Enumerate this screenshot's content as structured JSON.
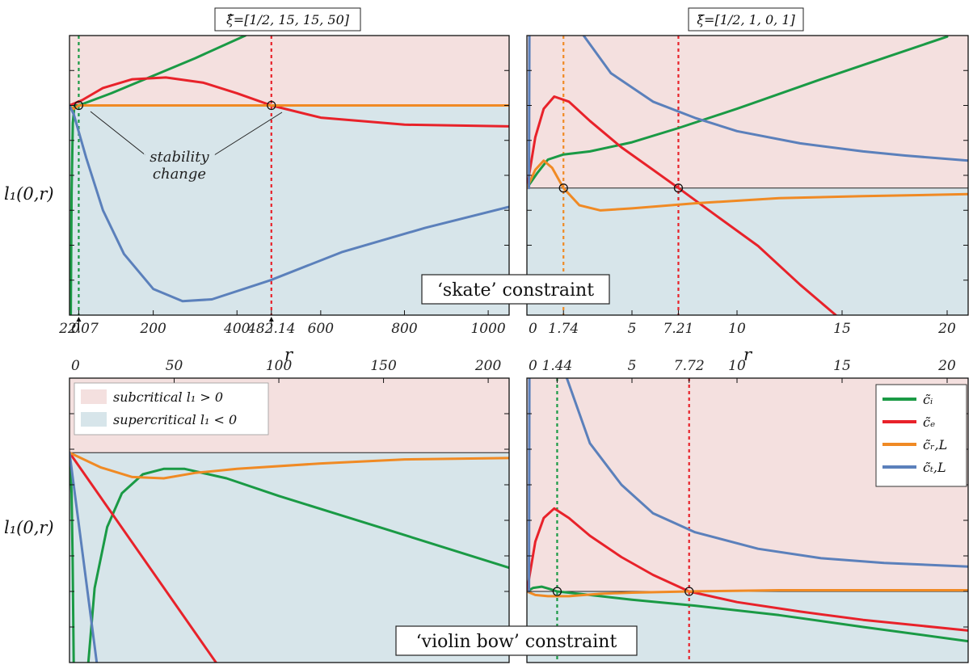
{
  "colors": {
    "green": "#1a9a45",
    "red": "#e8222a",
    "orange": "#f08a24",
    "blue": "#5b80bb",
    "subcritical_bg": "#f4e0df",
    "supercritical_bg": "#d7e5ea"
  },
  "titles": {
    "left": "ξ̂=[1/2, 15, 15, 50]",
    "right": "ξ̃=[1/2, 1, 0, 1]"
  },
  "ylabel": "l₁(0,r)",
  "xlabel": "r",
  "banners": {
    "skate": "‘skate’ constraint",
    "violin": "‘violin bow’ constraint"
  },
  "annotation": {
    "line1": "stability",
    "line2": "change"
  },
  "region_legend": {
    "sub": "subcritical  l₁ > 0",
    "super": "supercritical  l₁ < 0"
  },
  "series_legend": [
    {
      "key": "green",
      "label": "c̃ᵢ"
    },
    {
      "key": "red",
      "label": "c̃ₑ"
    },
    {
      "key": "orange",
      "label": "c̃ᵣ,L"
    },
    {
      "key": "blue",
      "label": "c̃ₜ,L"
    }
  ],
  "chart_data": [
    {
      "id": "skate-left",
      "type": "line",
      "title": "ξ̂=[1/2, 15, 15, 50]",
      "xlabel": "r",
      "ylabel": "l₁(0,r)",
      "xlim": [
        0,
        1050
      ],
      "ylim": [
        -1.2,
        0.4
      ],
      "zero": 0,
      "xticks": [
        {
          "v": 0,
          "label": "0"
        },
        {
          "v": 22.07,
          "label": "22.07"
        },
        {
          "v": 200,
          "label": "200"
        },
        {
          "v": 400,
          "label": "400"
        },
        {
          "v": 482.14,
          "label": "482.14"
        },
        {
          "v": 600,
          "label": "600"
        },
        {
          "v": 800,
          "label": "800"
        },
        {
          "v": 1000,
          "label": "1000"
        }
      ],
      "vlines": [
        {
          "x": 22.07,
          "color": "green"
        },
        {
          "x": 482.14,
          "color": "red"
        }
      ],
      "crossings": [
        {
          "x": 22.07,
          "y": 0
        },
        {
          "x": 482.14,
          "y": 0
        }
      ],
      "series": [
        {
          "color": "green",
          "points": [
            [
              3,
              -1.2
            ],
            [
              5,
              -0.5
            ],
            [
              8,
              -0.1
            ],
            [
              12,
              0
            ],
            [
              22.07,
              0
            ],
            [
              100,
              0.07
            ],
            [
              200,
              0.17
            ],
            [
              300,
              0.27
            ],
            [
              420,
              0.4
            ]
          ]
        },
        {
          "color": "red",
          "points": [
            [
              0,
              0
            ],
            [
              30,
              0.03
            ],
            [
              80,
              0.1
            ],
            [
              150,
              0.15
            ],
            [
              230,
              0.16
            ],
            [
              320,
              0.13
            ],
            [
              400,
              0.07
            ],
            [
              482.14,
              0
            ],
            [
              600,
              -0.07
            ],
            [
              800,
              -0.11
            ],
            [
              1050,
              -0.12
            ]
          ]
        },
        {
          "color": "orange",
          "points": [
            [
              0,
              0
            ],
            [
              10,
              -0.02
            ],
            [
              22.07,
              0
            ],
            [
              100,
              0
            ],
            [
              482.14,
              0
            ],
            [
              1050,
              0
            ]
          ]
        },
        {
          "color": "blue",
          "points": [
            [
              0,
              0
            ],
            [
              10,
              -0.05
            ],
            [
              40,
              -0.3
            ],
            [
              80,
              -0.6
            ],
            [
              130,
              -0.85
            ],
            [
              200,
              -1.05
            ],
            [
              270,
              -1.12
            ],
            [
              340,
              -1.11
            ],
            [
              480,
              -1.0
            ],
            [
              650,
              -0.84
            ],
            [
              850,
              -0.7
            ],
            [
              1050,
              -0.58
            ]
          ]
        }
      ]
    },
    {
      "id": "skate-right",
      "type": "line",
      "title": "ξ̃=[1/2, 1, 0, 1]",
      "xlabel": "r",
      "xlim": [
        0,
        21
      ],
      "ylim": [
        -1.25,
        1.5
      ],
      "zero": 0,
      "xticks": [
        {
          "v": 0,
          "label": "0"
        },
        {
          "v": 1.74,
          "label": "1.74"
        },
        {
          "v": 5,
          "label": "5"
        },
        {
          "v": 7.21,
          "label": "7.21"
        },
        {
          "v": 10,
          "label": "10"
        },
        {
          "v": 15,
          "label": "15"
        },
        {
          "v": 20,
          "label": "20"
        }
      ],
      "vlines": [
        {
          "x": 1.74,
          "color": "orange"
        },
        {
          "x": 7.21,
          "color": "red"
        }
      ],
      "crossings": [
        {
          "x": 1.74,
          "y": 0
        },
        {
          "x": 7.21,
          "y": 0
        }
      ],
      "series": [
        {
          "color": "green",
          "points": [
            [
              0,
              0
            ],
            [
              0.5,
              0.15
            ],
            [
              1,
              0.28
            ],
            [
              1.74,
              0.33
            ],
            [
              3,
              0.36
            ],
            [
              5,
              0.45
            ],
            [
              7.21,
              0.59
            ],
            [
              10,
              0.78
            ],
            [
              14,
              1.07
            ],
            [
              17,
              1.28
            ],
            [
              20,
              1.49
            ]
          ]
        },
        {
          "color": "red",
          "points": [
            [
              0,
              0
            ],
            [
              0.4,
              0.5
            ],
            [
              0.8,
              0.78
            ],
            [
              1.3,
              0.9
            ],
            [
              2,
              0.85
            ],
            [
              3,
              0.66
            ],
            [
              4.5,
              0.4
            ],
            [
              6,
              0.18
            ],
            [
              7.21,
              0
            ],
            [
              9,
              -0.27
            ],
            [
              11,
              -0.57
            ],
            [
              13,
              -0.95
            ],
            [
              14.7,
              -1.25
            ]
          ]
        },
        {
          "color": "orange",
          "points": [
            [
              0,
              0
            ],
            [
              0.4,
              0.18
            ],
            [
              0.8,
              0.27
            ],
            [
              1.2,
              0.2
            ],
            [
              1.74,
              0
            ],
            [
              2.5,
              -0.17
            ],
            [
              3.5,
              -0.22
            ],
            [
              5,
              -0.2
            ],
            [
              8,
              -0.15
            ],
            [
              12,
              -0.1
            ],
            [
              16,
              -0.08
            ],
            [
              21,
              -0.06
            ]
          ]
        },
        {
          "color": "blue",
          "points": [
            [
              0.1,
              0
            ],
            [
              0.12,
              1.5
            ]
          ]
        },
        {
          "color": "blue",
          "points": [
            [
              2.7,
              1.5
            ],
            [
              4,
              1.13
            ],
            [
              6,
              0.85
            ],
            [
              8,
              0.69
            ],
            [
              10,
              0.56
            ],
            [
              13,
              0.44
            ],
            [
              16,
              0.36
            ],
            [
              18,
              0.32
            ],
            [
              21,
              0.27
            ]
          ]
        }
      ]
    },
    {
      "id": "violin-left",
      "type": "line",
      "xlim": [
        0,
        210
      ],
      "ylim": [
        -1.55,
        0.55
      ],
      "zero": 0,
      "xticks": [
        {
          "v": 0,
          "label": "0"
        },
        {
          "v": 50,
          "label": "50"
        },
        {
          "v": 100,
          "label": "100"
        },
        {
          "v": 150,
          "label": "150"
        },
        {
          "v": 200,
          "label": "200"
        }
      ],
      "vlines": [],
      "crossings": [],
      "series": [
        {
          "color": "green",
          "points": [
            [
              0,
              0
            ],
            [
              1,
              -0.3
            ],
            [
              1.5,
              -0.8
            ],
            [
              2,
              -1.55
            ]
          ]
        },
        {
          "color": "green",
          "points": [
            [
              9,
              -1.55
            ],
            [
              12,
              -1.0
            ],
            [
              18,
              -0.55
            ],
            [
              25,
              -0.3
            ],
            [
              35,
              -0.16
            ],
            [
              45,
              -0.12
            ],
            [
              55,
              -0.12
            ],
            [
              75,
              -0.19
            ],
            [
              100,
              -0.32
            ],
            [
              150,
              -0.56
            ],
            [
              210,
              -0.85
            ]
          ]
        },
        {
          "color": "red",
          "points": [
            [
              0,
              0
            ],
            [
              70,
              -1.55
            ]
          ]
        },
        {
          "color": "orange",
          "points": [
            [
              0,
              0
            ],
            [
              15,
              -0.11
            ],
            [
              30,
              -0.18
            ],
            [
              45,
              -0.19
            ],
            [
              60,
              -0.15
            ],
            [
              80,
              -0.12
            ],
            [
              120,
              -0.08
            ],
            [
              160,
              -0.05
            ],
            [
              210,
              -0.04
            ]
          ]
        },
        {
          "color": "blue",
          "points": [
            [
              0,
              0
            ],
            [
              13,
              -1.55
            ]
          ]
        }
      ]
    },
    {
      "id": "violin-right",
      "type": "line",
      "xlim": [
        0,
        21
      ],
      "ylim": [
        -0.6,
        1.8
      ],
      "zero": 0,
      "xticks": [
        {
          "v": 0,
          "label": "0"
        },
        {
          "v": 1.44,
          "label": "1.44"
        },
        {
          "v": 5,
          "label": "5"
        },
        {
          "v": 7.72,
          "label": "7.72"
        },
        {
          "v": 10,
          "label": "10"
        },
        {
          "v": 15,
          "label": "15"
        },
        {
          "v": 20,
          "label": "20"
        }
      ],
      "vlines": [
        {
          "x": 1.44,
          "color": "green"
        },
        {
          "x": 7.72,
          "color": "red"
        }
      ],
      "crossings": [
        {
          "x": 1.44,
          "y": 0
        },
        {
          "x": 7.72,
          "y": 0
        }
      ],
      "series": [
        {
          "color": "green",
          "points": [
            [
              0,
              0
            ],
            [
              0.3,
              0.03
            ],
            [
              0.7,
              0.04
            ],
            [
              1.1,
              0.02
            ],
            [
              1.44,
              0
            ],
            [
              3,
              -0.03
            ],
            [
              5,
              -0.07
            ],
            [
              8,
              -0.12
            ],
            [
              12,
              -0.2
            ],
            [
              16,
              -0.3
            ],
            [
              21,
              -0.42
            ]
          ]
        },
        {
          "color": "red",
          "points": [
            [
              0,
              0
            ],
            [
              0.4,
              0.42
            ],
            [
              0.8,
              0.62
            ],
            [
              1.3,
              0.7
            ],
            [
              2,
              0.62
            ],
            [
              3,
              0.47
            ],
            [
              4.5,
              0.29
            ],
            [
              6,
              0.14
            ],
            [
              7.72,
              0
            ],
            [
              10,
              -0.09
            ],
            [
              13,
              -0.17
            ],
            [
              16,
              -0.24
            ],
            [
              21,
              -0.33
            ]
          ]
        },
        {
          "color": "orange",
          "points": [
            [
              0,
              0
            ],
            [
              0.4,
              -0.03
            ],
            [
              1,
              -0.04
            ],
            [
              2,
              -0.04
            ],
            [
              3.5,
              -0.02
            ],
            [
              5,
              -0.01
            ],
            [
              7.72,
              0
            ],
            [
              12,
              0.01
            ],
            [
              21,
              0.01
            ]
          ]
        },
        {
          "color": "blue",
          "points": [
            [
              0.1,
              0
            ],
            [
              0.12,
              1.8
            ]
          ]
        },
        {
          "color": "blue",
          "points": [
            [
              1.9,
              1.8
            ],
            [
              3,
              1.25
            ],
            [
              4.5,
              0.9
            ],
            [
              6,
              0.66
            ],
            [
              8,
              0.5
            ],
            [
              11,
              0.36
            ],
            [
              14,
              0.28
            ],
            [
              17,
              0.24
            ],
            [
              21,
              0.21
            ]
          ]
        }
      ]
    }
  ]
}
